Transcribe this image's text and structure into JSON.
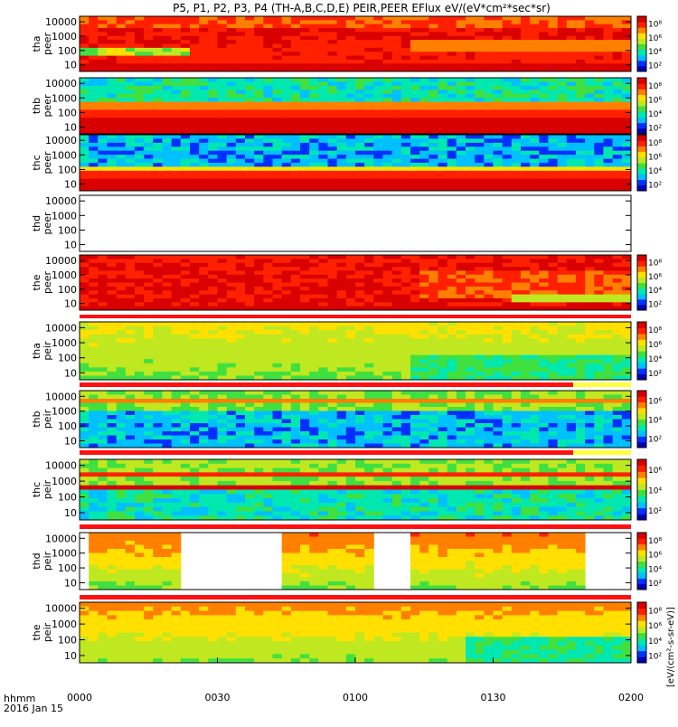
{
  "title": "P5, P1, P2, P3, P4 (TH-A,B,C,D,E) PEIR,PEER EFlux eV/(eV*cm²*sec*sr)",
  "x_axis": {
    "corner_top": "hhmm",
    "corner_bottom": "2016 Jan 15",
    "ticks": [
      "0000",
      "0030",
      "0100",
      "0130",
      "0200"
    ],
    "range_minutes": [
      0,
      120
    ]
  },
  "colorbar_label_right": "[eV/(cm²-s-sr-eV)]",
  "colors": {
    "palette": [
      "#0000b0",
      "#0030ff",
      "#00c0ff",
      "#00e8b0",
      "#40e040",
      "#c0e820",
      "#ffe000",
      "#ff8000",
      "#ff2000",
      "#d80000"
    ]
  },
  "chart_data": [
    {
      "type": "heatmap",
      "ylabel": "tha peer",
      "yticks": [
        "10",
        "100",
        "1000",
        "10000"
      ],
      "cbar_ticks": [
        "10²",
        "10⁴",
        "10⁶",
        "10⁸"
      ],
      "profile": "tha_peer"
    },
    {
      "type": "heatmap",
      "ylabel": "thb peer",
      "yticks": [
        "10",
        "100",
        "1000",
        "10000"
      ],
      "cbar_ticks": [
        "10²",
        "10⁴",
        "10⁶",
        "10⁸"
      ],
      "profile": "thb_peer"
    },
    {
      "type": "heatmap",
      "ylabel": "thc peer",
      "yticks": [
        "10",
        "100",
        "1000",
        "10000"
      ],
      "cbar_ticks": [
        "10²",
        "10⁴",
        "10⁶",
        "10⁸"
      ],
      "profile": "thc_peer"
    },
    {
      "type": "heatmap",
      "ylabel": "thd peer",
      "yticks": [
        "10",
        "100",
        "1000",
        "10000"
      ],
      "cbar_ticks": [],
      "profile": "empty"
    },
    {
      "type": "heatmap",
      "ylabel": "the peer",
      "yticks": [
        "10",
        "100",
        "1000",
        "10000"
      ],
      "cbar_ticks": [
        "10²",
        "10⁴",
        "10⁶",
        "10⁸"
      ],
      "profile": "the_peer"
    },
    {
      "type": "heatmap",
      "ylabel": "tha peir",
      "yticks": [
        "10",
        "100",
        "1000",
        "10000"
      ],
      "cbar_ticks": [
        "10²",
        "10⁴",
        "10⁶",
        "10⁸"
      ],
      "profile": "tha_peir"
    },
    {
      "type": "heatmap",
      "ylabel": "thb peir",
      "yticks": [
        "10",
        "100",
        "1000",
        "10000"
      ],
      "cbar_ticks": [
        "10²",
        "10⁴",
        "10⁶"
      ],
      "profile": "thb_peir"
    },
    {
      "type": "heatmap",
      "ylabel": "thc peir",
      "yticks": [
        "10",
        "100",
        "1000",
        "10000"
      ],
      "cbar_ticks": [
        "10²",
        "10⁴",
        "10⁶"
      ],
      "profile": "thc_peir"
    },
    {
      "type": "heatmap",
      "ylabel": "thd peir",
      "yticks": [
        "10",
        "100",
        "1000",
        "10000"
      ],
      "cbar_ticks": [
        "10²",
        "10⁴",
        "10⁶",
        "10⁸"
      ],
      "profile": "thd_peir"
    },
    {
      "type": "heatmap",
      "ylabel": "the peir",
      "yticks": [
        "10",
        "100",
        "1000",
        "10000"
      ],
      "cbar_ticks": [
        "10²",
        "10⁴",
        "10⁶",
        "10⁸"
      ],
      "profile": "the_peir"
    }
  ]
}
